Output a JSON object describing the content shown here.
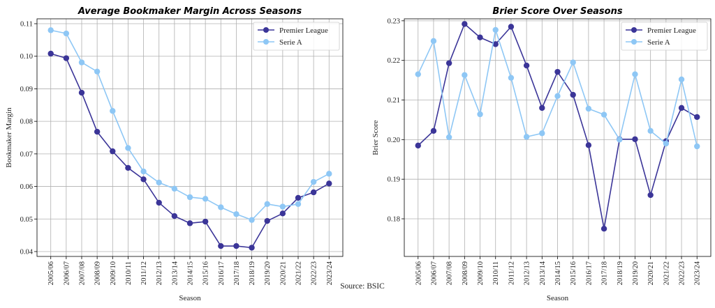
{
  "source_note": "Source: BSIC",
  "chart_data": [
    {
      "type": "line",
      "title": "Average Bookmaker Margin Across Seasons",
      "xlabel": "Season",
      "ylabel": "Bookmaker Margin",
      "categories": [
        "2005/06",
        "2006/07",
        "2007/08",
        "2008/09",
        "2009/10",
        "2010/11",
        "2011/12",
        "2012/13",
        "2013/14",
        "2014/15",
        "2015/16",
        "2016/17",
        "2017/18",
        "2018/19",
        "2019/20",
        "2020/21",
        "2021/22",
        "2022/23",
        "2023/24"
      ],
      "ylim": [
        0.0385,
        0.1115
      ],
      "yticks": [
        0.04,
        0.05,
        0.06,
        0.07,
        0.08,
        0.09,
        0.1,
        0.11
      ],
      "ytick_labels": [
        "0.04",
        "0.05",
        "0.06",
        "0.07",
        "0.08",
        "0.09",
        "0.10",
        "0.11"
      ],
      "grid": true,
      "legend": "top-right",
      "series": [
        {
          "name": "Premier League",
          "color": "#3b3598",
          "values": [
            0.1008,
            0.0994,
            0.0888,
            0.0768,
            0.0708,
            0.0657,
            0.0622,
            0.055,
            0.0509,
            0.0487,
            0.0492,
            0.0417,
            0.0417,
            0.0412,
            0.0494,
            0.0517,
            0.0565,
            0.0582,
            0.0609
          ]
        },
        {
          "name": "Serie A",
          "color": "#8ec7f5",
          "values": [
            0.108,
            0.107,
            0.0981,
            0.0953,
            0.0832,
            0.0718,
            0.0646,
            0.0612,
            0.0593,
            0.0567,
            0.0562,
            0.0536,
            0.0515,
            0.0497,
            0.0546,
            0.0538,
            0.0546,
            0.0614,
            0.0639
          ]
        }
      ]
    },
    {
      "type": "line",
      "title": "Brier Score Over Seasons",
      "xlabel": "Season",
      "ylabel": "Brier Score",
      "categories": [
        "2005/06",
        "2006/07",
        "2007/08",
        "2008/09",
        "2009/10",
        "2010/11",
        "2011/12",
        "2012/13",
        "2013/14",
        "2014/15",
        "2015/16",
        "2016/17",
        "2017/18",
        "2018/19",
        "2019/20",
        "2020/21",
        "2021/22",
        "2022/23",
        "2023/24"
      ],
      "ylim": [
        0.1705,
        0.2305
      ],
      "yticks": [
        0.18,
        0.19,
        0.2,
        0.21,
        0.22,
        0.23
      ],
      "ytick_labels": [
        "0.18",
        "0.19",
        "0.20",
        "0.21",
        "0.22",
        "0.23"
      ],
      "grid": true,
      "legend": "top-right",
      "series": [
        {
          "name": "Premier League",
          "color": "#3b3598",
          "values": [
            0.1985,
            0.2022,
            0.2193,
            0.2292,
            0.2258,
            0.2241,
            0.2285,
            0.2187,
            0.208,
            0.2171,
            0.2113,
            0.1986,
            0.1775,
            0.2001,
            0.2001,
            0.186,
            0.1996,
            0.208,
            0.2057
          ]
        },
        {
          "name": "Serie A",
          "color": "#8ec7f5",
          "values": [
            0.2165,
            0.2249,
            0.2006,
            0.2163,
            0.2064,
            0.2277,
            0.2156,
            0.2007,
            0.2016,
            0.211,
            0.2195,
            0.2078,
            0.2063,
            0.2,
            0.2165,
            0.2022,
            0.199,
            0.2152,
            0.1983
          ]
        }
      ]
    }
  ]
}
